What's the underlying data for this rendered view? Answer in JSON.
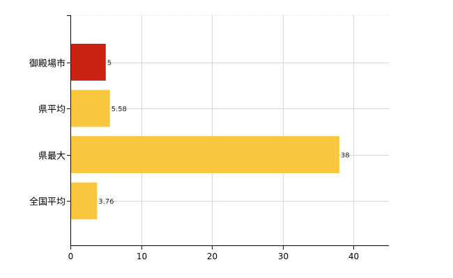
{
  "chart_data": {
    "type": "bar",
    "orientation": "horizontal",
    "categories": [
      "御殿場市",
      "県平均",
      "県最大",
      "全国平均"
    ],
    "values": [
      5,
      5.58,
      38,
      3.76
    ],
    "value_labels": [
      "5",
      "5.58",
      "38",
      "3.76"
    ],
    "bar_colors": [
      "#cc2211",
      "#f9c73e",
      "#f9c73e",
      "#f9c73e"
    ],
    "xlim": [
      0,
      45
    ],
    "xticks": [
      0,
      10,
      20,
      30,
      40
    ],
    "xlabel": "",
    "ylabel": "",
    "title": "",
    "grid": true,
    "legend": "none"
  }
}
